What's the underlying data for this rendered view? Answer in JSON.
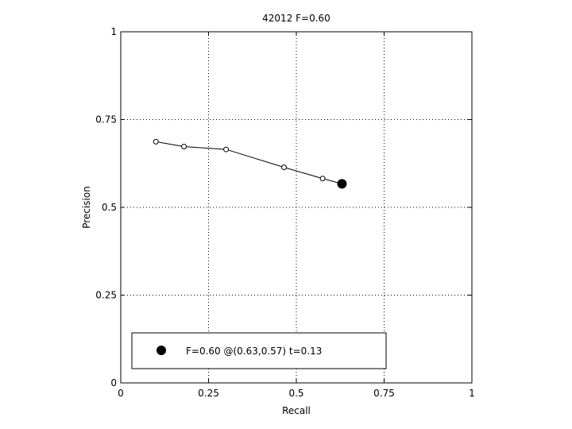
{
  "chart_data": {
    "type": "line",
    "title": "42012 F=0.60",
    "xlabel": "Recall",
    "ylabel": "Precision",
    "xlim": [
      0,
      1
    ],
    "ylim": [
      0,
      1
    ],
    "grid": true,
    "xticks": [
      0,
      0.25,
      0.5,
      0.75,
      1
    ],
    "yticks": [
      0,
      0.25,
      0.5,
      0.75,
      1
    ],
    "xtick_labels": [
      "0",
      "0.25",
      "0.5",
      "0.75",
      "1"
    ],
    "ytick_labels": [
      "0",
      "0.25",
      "0.5",
      "0.75",
      "1"
    ],
    "series": [
      {
        "x": [
          0.1,
          0.18,
          0.3,
          0.465,
          0.575,
          0.63
        ],
        "y": [
          0.687,
          0.673,
          0.665,
          0.614,
          0.582,
          0.567
        ]
      }
    ],
    "best_point": {
      "x": 0.63,
      "y": 0.567
    },
    "legend": {
      "placement": "bottom-left",
      "entries": [
        "F=0.60 @(0.63,0.57) t=0.13"
      ]
    }
  }
}
